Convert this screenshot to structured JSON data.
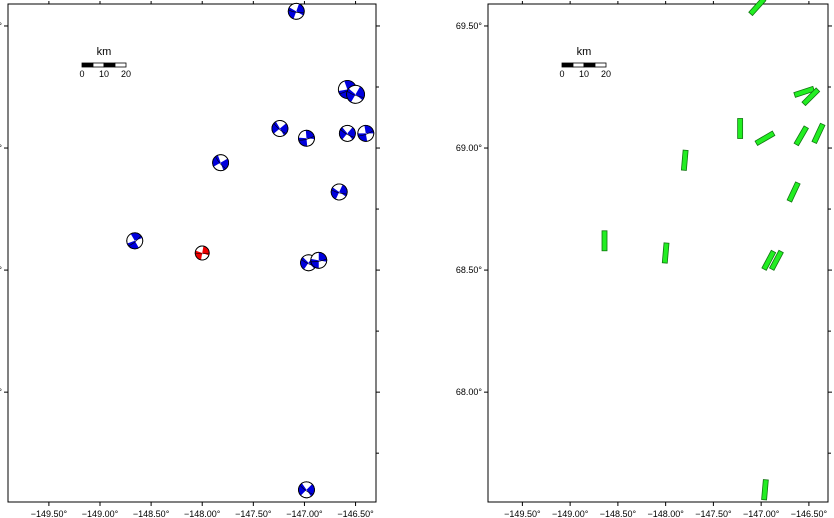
{
  "colors": {
    "frame": "#000000",
    "beachball_fill": "#0000dd",
    "highlight_fill": "#ee0000",
    "fault_fill": "#22ee22",
    "fault_stroke": "#117711"
  },
  "map": {
    "lon_ticks": [
      "−149.50°",
      "−149.00°",
      "−148.50°",
      "−148.00°",
      "−147.50°",
      "−147.00°",
      "−146.50°"
    ],
    "lat_ticks": [
      "69.50°",
      "69.00°",
      "68.50°",
      "68.00°"
    ],
    "lon_values": [
      -149.5,
      -149.0,
      -148.5,
      -148.0,
      -147.5,
      -147.0,
      -146.5
    ],
    "lat_values": [
      69.5,
      69.0,
      68.5,
      68.0
    ],
    "scale_bar": {
      "unit": "km",
      "labels": [
        "0",
        "10",
        "20"
      ]
    }
  },
  "panels": {
    "left": {
      "events": [
        {
          "name": "event-1",
          "lon": -147.08,
          "lat": 69.56,
          "highlight": false
        },
        {
          "name": "event-2",
          "lon": -146.58,
          "lat": 69.24,
          "highlight": false
        },
        {
          "name": "event-3",
          "lon": -146.5,
          "lat": 69.22,
          "highlight": false
        },
        {
          "name": "event-4",
          "lon": -147.24,
          "lat": 69.08,
          "highlight": false
        },
        {
          "name": "event-5",
          "lon": -146.98,
          "lat": 69.04,
          "highlight": false
        },
        {
          "name": "event-6",
          "lon": -146.58,
          "lat": 69.06,
          "highlight": false
        },
        {
          "name": "event-7",
          "lon": -146.4,
          "lat": 69.06,
          "highlight": false
        },
        {
          "name": "event-8",
          "lon": -147.82,
          "lat": 68.94,
          "highlight": false
        },
        {
          "name": "event-9",
          "lon": -146.66,
          "lat": 68.82,
          "highlight": false
        },
        {
          "name": "event-10",
          "lon": -148.66,
          "lat": 68.62,
          "highlight": false
        },
        {
          "name": "event-11",
          "lon": -148.0,
          "lat": 68.57,
          "highlight": true
        },
        {
          "name": "event-12",
          "lon": -146.96,
          "lat": 68.53,
          "highlight": false
        },
        {
          "name": "event-13",
          "lon": -146.86,
          "lat": 68.54,
          "highlight": false
        },
        {
          "name": "event-14",
          "lon": -146.98,
          "lat": 67.6,
          "highlight": false
        }
      ]
    },
    "right": {
      "faults": [
        {
          "name": "fault-1",
          "lon": -147.04,
          "lat": 69.58,
          "strike": 42
        },
        {
          "name": "fault-2",
          "lon": -146.55,
          "lat": 69.23,
          "strike": 72
        },
        {
          "name": "fault-3",
          "lon": -146.48,
          "lat": 69.21,
          "strike": 45
        },
        {
          "name": "fault-4",
          "lon": -147.22,
          "lat": 69.08,
          "strike": 0
        },
        {
          "name": "fault-5",
          "lon": -146.96,
          "lat": 69.04,
          "strike": 60
        },
        {
          "name": "fault-6",
          "lon": -146.58,
          "lat": 69.05,
          "strike": 30
        },
        {
          "name": "fault-7",
          "lon": -146.4,
          "lat": 69.06,
          "strike": 25
        },
        {
          "name": "fault-8",
          "lon": -147.8,
          "lat": 68.95,
          "strike": 5
        },
        {
          "name": "fault-9",
          "lon": -146.66,
          "lat": 68.82,
          "strike": 25
        },
        {
          "name": "fault-10",
          "lon": -148.64,
          "lat": 68.62,
          "strike": 0
        },
        {
          "name": "fault-11",
          "lon": -148.0,
          "lat": 68.57,
          "strike": 5
        },
        {
          "name": "fault-12",
          "lon": -146.92,
          "lat": 68.54,
          "strike": 28
        },
        {
          "name": "fault-13",
          "lon": -146.84,
          "lat": 68.54,
          "strike": 28
        },
        {
          "name": "fault-14",
          "lon": -146.96,
          "lat": 67.6,
          "strike": 5
        }
      ]
    }
  }
}
